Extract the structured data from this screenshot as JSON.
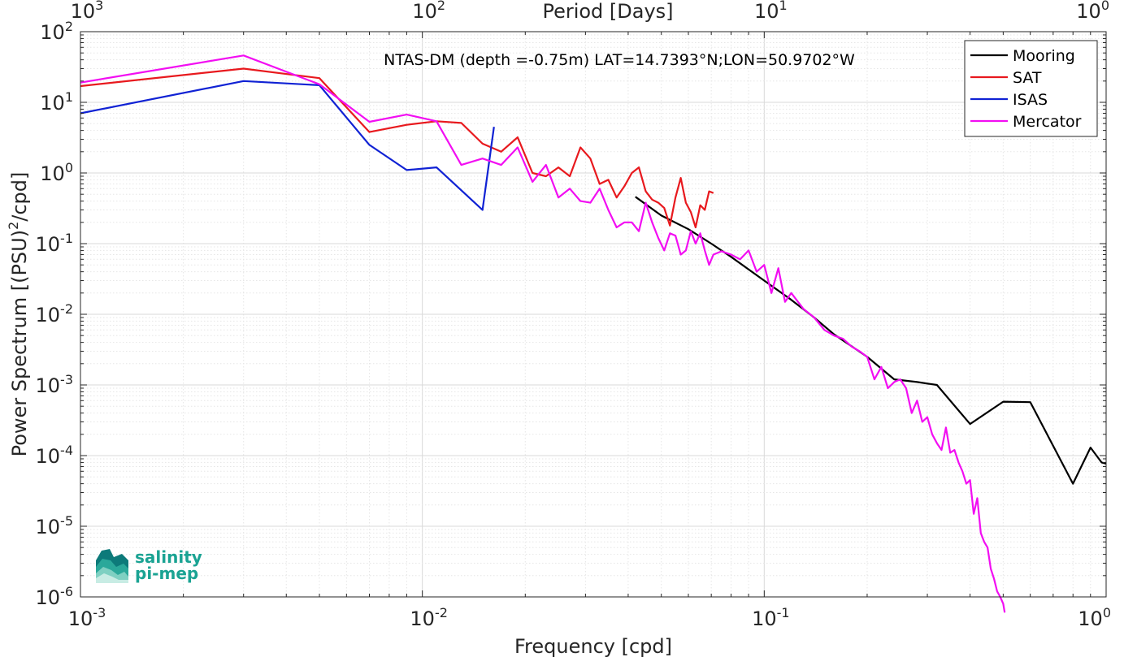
{
  "chart_data": {
    "type": "line",
    "title": "NTAS-DM (depth =-0.75m) LAT=14.7393°N;LON=50.9702°W",
    "xlabel": "Frequency [cpd]",
    "ylabel": "Power Spectrum [(PSU)",
    "ylabel_sup": "2",
    "ylabel_tail": "/cpd]",
    "top_xlabel": "Period [Days]",
    "xscale": "log",
    "yscale": "log",
    "xlim": [
      0.001,
      1
    ],
    "ylim": [
      1e-06,
      100
    ],
    "grid": true,
    "legend_position": "top-right",
    "x_ticks": [
      {
        "base": "10",
        "exp": "-3"
      },
      {
        "base": "10",
        "exp": "-2"
      },
      {
        "base": "10",
        "exp": "-1"
      },
      {
        "base": "10",
        "exp": "0"
      }
    ],
    "top_ticks": [
      {
        "base": "10",
        "exp": "3"
      },
      {
        "base": "10",
        "exp": "2"
      },
      {
        "base": "10",
        "exp": "1"
      },
      {
        "base": "10",
        "exp": "0"
      }
    ],
    "y_ticks": [
      {
        "base": "10",
        "exp": "-6"
      },
      {
        "base": "10",
        "exp": "-5"
      },
      {
        "base": "10",
        "exp": "-4"
      },
      {
        "base": "10",
        "exp": "-3"
      },
      {
        "base": "10",
        "exp": "-2"
      },
      {
        "base": "10",
        "exp": "-1"
      },
      {
        "base": "10",
        "exp": "0"
      },
      {
        "base": "10",
        "exp": "1"
      },
      {
        "base": "10",
        "exp": "2"
      }
    ],
    "series": [
      {
        "name": "Mooring",
        "color": "#000000",
        "x": [
          0.042,
          0.05,
          0.06,
          0.07,
          0.08,
          0.1,
          0.12,
          0.14,
          0.16,
          0.2,
          0.24,
          0.28,
          0.32,
          0.4,
          0.5,
          0.6,
          0.8,
          0.9,
          0.97,
          1.0
        ],
        "y": [
          0.46,
          0.25,
          0.16,
          0.1,
          0.065,
          0.03,
          0.016,
          0.009,
          0.0052,
          0.0025,
          0.0012,
          0.0011,
          0.001,
          0.00028,
          0.00058,
          0.00057,
          4e-05,
          0.00013,
          8e-05,
          7.7e-05
        ]
      },
      {
        "name": "SAT",
        "color": "#e8191e",
        "x": [
          0.001,
          0.003,
          0.005,
          0.007,
          0.009,
          0.011,
          0.013,
          0.015,
          0.017,
          0.019,
          0.021,
          0.023,
          0.025,
          0.027,
          0.029,
          0.031,
          0.033,
          0.035,
          0.037,
          0.039,
          0.041,
          0.043,
          0.045,
          0.047,
          0.049,
          0.051,
          0.053,
          0.055,
          0.057,
          0.059,
          0.061,
          0.063,
          0.065,
          0.067,
          0.069,
          0.071
        ],
        "y": [
          17,
          30,
          22,
          3.8,
          4.8,
          5.4,
          5.1,
          2.6,
          2.0,
          3.2,
          1.0,
          0.9,
          1.2,
          0.9,
          2.3,
          1.6,
          0.7,
          0.8,
          0.45,
          0.65,
          1.0,
          1.2,
          0.55,
          0.42,
          0.38,
          0.32,
          0.18,
          0.45,
          0.85,
          0.38,
          0.28,
          0.17,
          0.35,
          0.3,
          0.55,
          0.52
        ]
      },
      {
        "name": "ISAS",
        "color": "#1022d4",
        "x": [
          0.001,
          0.003,
          0.005,
          0.007,
          0.009,
          0.011,
          0.015,
          0.0162
        ],
        "y": [
          7,
          20,
          17.5,
          2.5,
          1.1,
          1.2,
          0.3,
          4.5
        ]
      },
      {
        "name": "Mercator",
        "color": "#f20ef2",
        "x": [
          0.001,
          0.003,
          0.005,
          0.007,
          0.009,
          0.011,
          0.013,
          0.015,
          0.017,
          0.019,
          0.021,
          0.023,
          0.025,
          0.027,
          0.029,
          0.031,
          0.033,
          0.035,
          0.037,
          0.039,
          0.041,
          0.043,
          0.045,
          0.047,
          0.049,
          0.051,
          0.053,
          0.055,
          0.057,
          0.059,
          0.061,
          0.063,
          0.065,
          0.067,
          0.069,
          0.071,
          0.075,
          0.08,
          0.085,
          0.09,
          0.095,
          0.1,
          0.105,
          0.11,
          0.115,
          0.12,
          0.13,
          0.14,
          0.15,
          0.16,
          0.17,
          0.18,
          0.19,
          0.2,
          0.21,
          0.22,
          0.23,
          0.24,
          0.25,
          0.26,
          0.27,
          0.28,
          0.29,
          0.3,
          0.31,
          0.32,
          0.33,
          0.34,
          0.35,
          0.36,
          0.37,
          0.38,
          0.39,
          0.4,
          0.41,
          0.42,
          0.43,
          0.44,
          0.45,
          0.46,
          0.47,
          0.48,
          0.49,
          0.5,
          0.505
        ],
        "y": [
          19,
          46,
          18,
          5.3,
          6.7,
          5.4,
          1.3,
          1.6,
          1.3,
          2.3,
          0.75,
          1.3,
          0.45,
          0.6,
          0.4,
          0.38,
          0.6,
          0.3,
          0.17,
          0.2,
          0.2,
          0.15,
          0.38,
          0.2,
          0.12,
          0.08,
          0.14,
          0.13,
          0.07,
          0.08,
          0.15,
          0.1,
          0.14,
          0.08,
          0.05,
          0.07,
          0.078,
          0.07,
          0.06,
          0.08,
          0.04,
          0.05,
          0.02,
          0.045,
          0.015,
          0.02,
          0.012,
          0.009,
          0.006,
          0.005,
          0.0045,
          0.0035,
          0.003,
          0.0025,
          0.0012,
          0.0018,
          0.0009,
          0.0011,
          0.0012,
          0.0009,
          0.0004,
          0.0006,
          0.0003,
          0.00035,
          0.0002,
          0.00015,
          0.00012,
          0.00025,
          0.00011,
          0.00012,
          8e-05,
          6e-05,
          4e-05,
          4.5e-05,
          1.5e-05,
          2.5e-05,
          8e-06,
          6e-06,
          5e-06,
          2.5e-06,
          1.8e-06,
          1.2e-06,
          1e-06,
          8e-07,
          6e-07
        ]
      }
    ]
  },
  "logo": {
    "line1": "salinity",
    "line2": "pi-mep",
    "colors": [
      "#0d7a7a",
      "#2aa89a",
      "#7fd0c2",
      "#c8ece4"
    ]
  }
}
